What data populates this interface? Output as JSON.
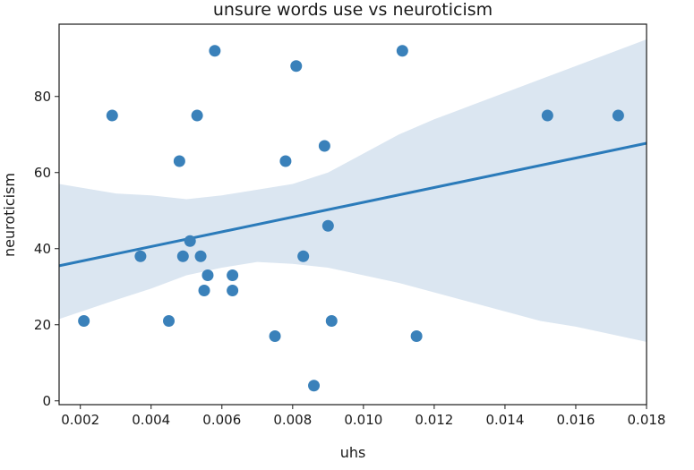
{
  "chart_data": {
    "type": "scatter",
    "title": "unsure words use vs neuroticism",
    "xlabel": "uhs",
    "ylabel": "neuroticism",
    "xlim": [
      0.0014,
      0.018
    ],
    "ylim": [
      -1,
      99
    ],
    "xticks": [
      0.002,
      0.004,
      0.006,
      0.008,
      0.01,
      0.012,
      0.014,
      0.016,
      0.018
    ],
    "xtick_labels": [
      "0.002",
      "0.004",
      "0.006",
      "0.008",
      "0.010",
      "0.012",
      "0.014",
      "0.016",
      "0.018"
    ],
    "yticks": [
      0,
      20,
      40,
      60,
      80
    ],
    "ytick_labels": [
      "0",
      "20",
      "40",
      "60",
      "80"
    ],
    "grid": false,
    "point_color": "#3a81ba",
    "line_color": "#2b7bba",
    "band_color": "#dbe6f1",
    "points": [
      {
        "x": 0.0021,
        "y": 21
      },
      {
        "x": 0.0029,
        "y": 75
      },
      {
        "x": 0.0037,
        "y": 38
      },
      {
        "x": 0.0045,
        "y": 21
      },
      {
        "x": 0.0048,
        "y": 63
      },
      {
        "x": 0.0049,
        "y": 38
      },
      {
        "x": 0.0051,
        "y": 42
      },
      {
        "x": 0.0053,
        "y": 75
      },
      {
        "x": 0.0054,
        "y": 38
      },
      {
        "x": 0.0055,
        "y": 29
      },
      {
        "x": 0.0056,
        "y": 33
      },
      {
        "x": 0.0058,
        "y": 92
      },
      {
        "x": 0.0063,
        "y": 33
      },
      {
        "x": 0.0063,
        "y": 29
      },
      {
        "x": 0.0075,
        "y": 17
      },
      {
        "x": 0.0078,
        "y": 63
      },
      {
        "x": 0.0081,
        "y": 88
      },
      {
        "x": 0.0083,
        "y": 38
      },
      {
        "x": 0.0086,
        "y": 4
      },
      {
        "x": 0.0089,
        "y": 67
      },
      {
        "x": 0.009,
        "y": 46
      },
      {
        "x": 0.0091,
        "y": 21
      },
      {
        "x": 0.0111,
        "y": 92
      },
      {
        "x": 0.0115,
        "y": 17
      },
      {
        "x": 0.0152,
        "y": 75
      },
      {
        "x": 0.0172,
        "y": 75
      }
    ],
    "regression": {
      "x": [
        0.0014,
        0.018
      ],
      "y": [
        35.5,
        67.7
      ]
    },
    "confidence_band": {
      "x": [
        0.0014,
        0.003,
        0.004,
        0.005,
        0.006,
        0.007,
        0.008,
        0.009,
        0.01,
        0.011,
        0.012,
        0.013,
        0.014,
        0.015,
        0.016,
        0.017,
        0.018
      ],
      "upper": [
        57.0,
        54.5,
        54.0,
        53.0,
        54.0,
        55.5,
        57.0,
        60.0,
        65.0,
        70.0,
        74.0,
        77.5,
        81.0,
        84.5,
        88.0,
        91.5,
        95.0
      ],
      "lower": [
        21.5,
        26.5,
        29.5,
        33.0,
        35.0,
        36.5,
        36.0,
        35.0,
        33.0,
        31.0,
        28.5,
        26.0,
        23.5,
        21.0,
        19.5,
        17.5,
        15.5
      ]
    }
  }
}
